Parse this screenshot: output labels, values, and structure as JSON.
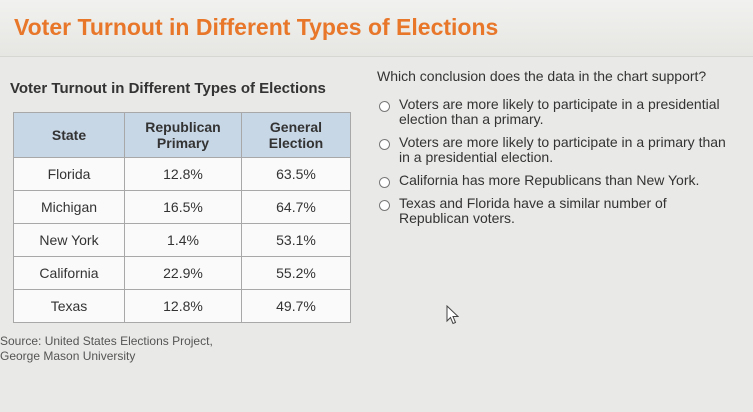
{
  "header": {
    "title": "Voter Turnout in Different Types of Elections"
  },
  "table": {
    "title": "Voter Turnout in Different Types of Elections",
    "columns": [
      "State",
      "Republican Primary",
      "General Election"
    ],
    "rows": [
      [
        "Florida",
        "12.8%",
        "63.5%"
      ],
      [
        "Michigan",
        "16.5%",
        "64.7%"
      ],
      [
        "New York",
        "1.4%",
        "53.1%"
      ],
      [
        "California",
        "22.9%",
        "55.2%"
      ],
      [
        "Texas",
        "12.8%",
        "49.7%"
      ]
    ],
    "source_line1": "Source: United States Elections Project,",
    "source_line2": "George Mason University"
  },
  "question": {
    "prompt": "Which conclusion does the data in the chart support?",
    "options": [
      "Voters are more likely to participate in a presidential election than a primary.",
      "Voters are more likely to participate in a primary than in a presidential election.",
      "California has more Republicans than New York.",
      "Texas and Florida have a similar number of Republican voters."
    ]
  },
  "cursor": {
    "icon": "mouse-pointer-icon"
  }
}
